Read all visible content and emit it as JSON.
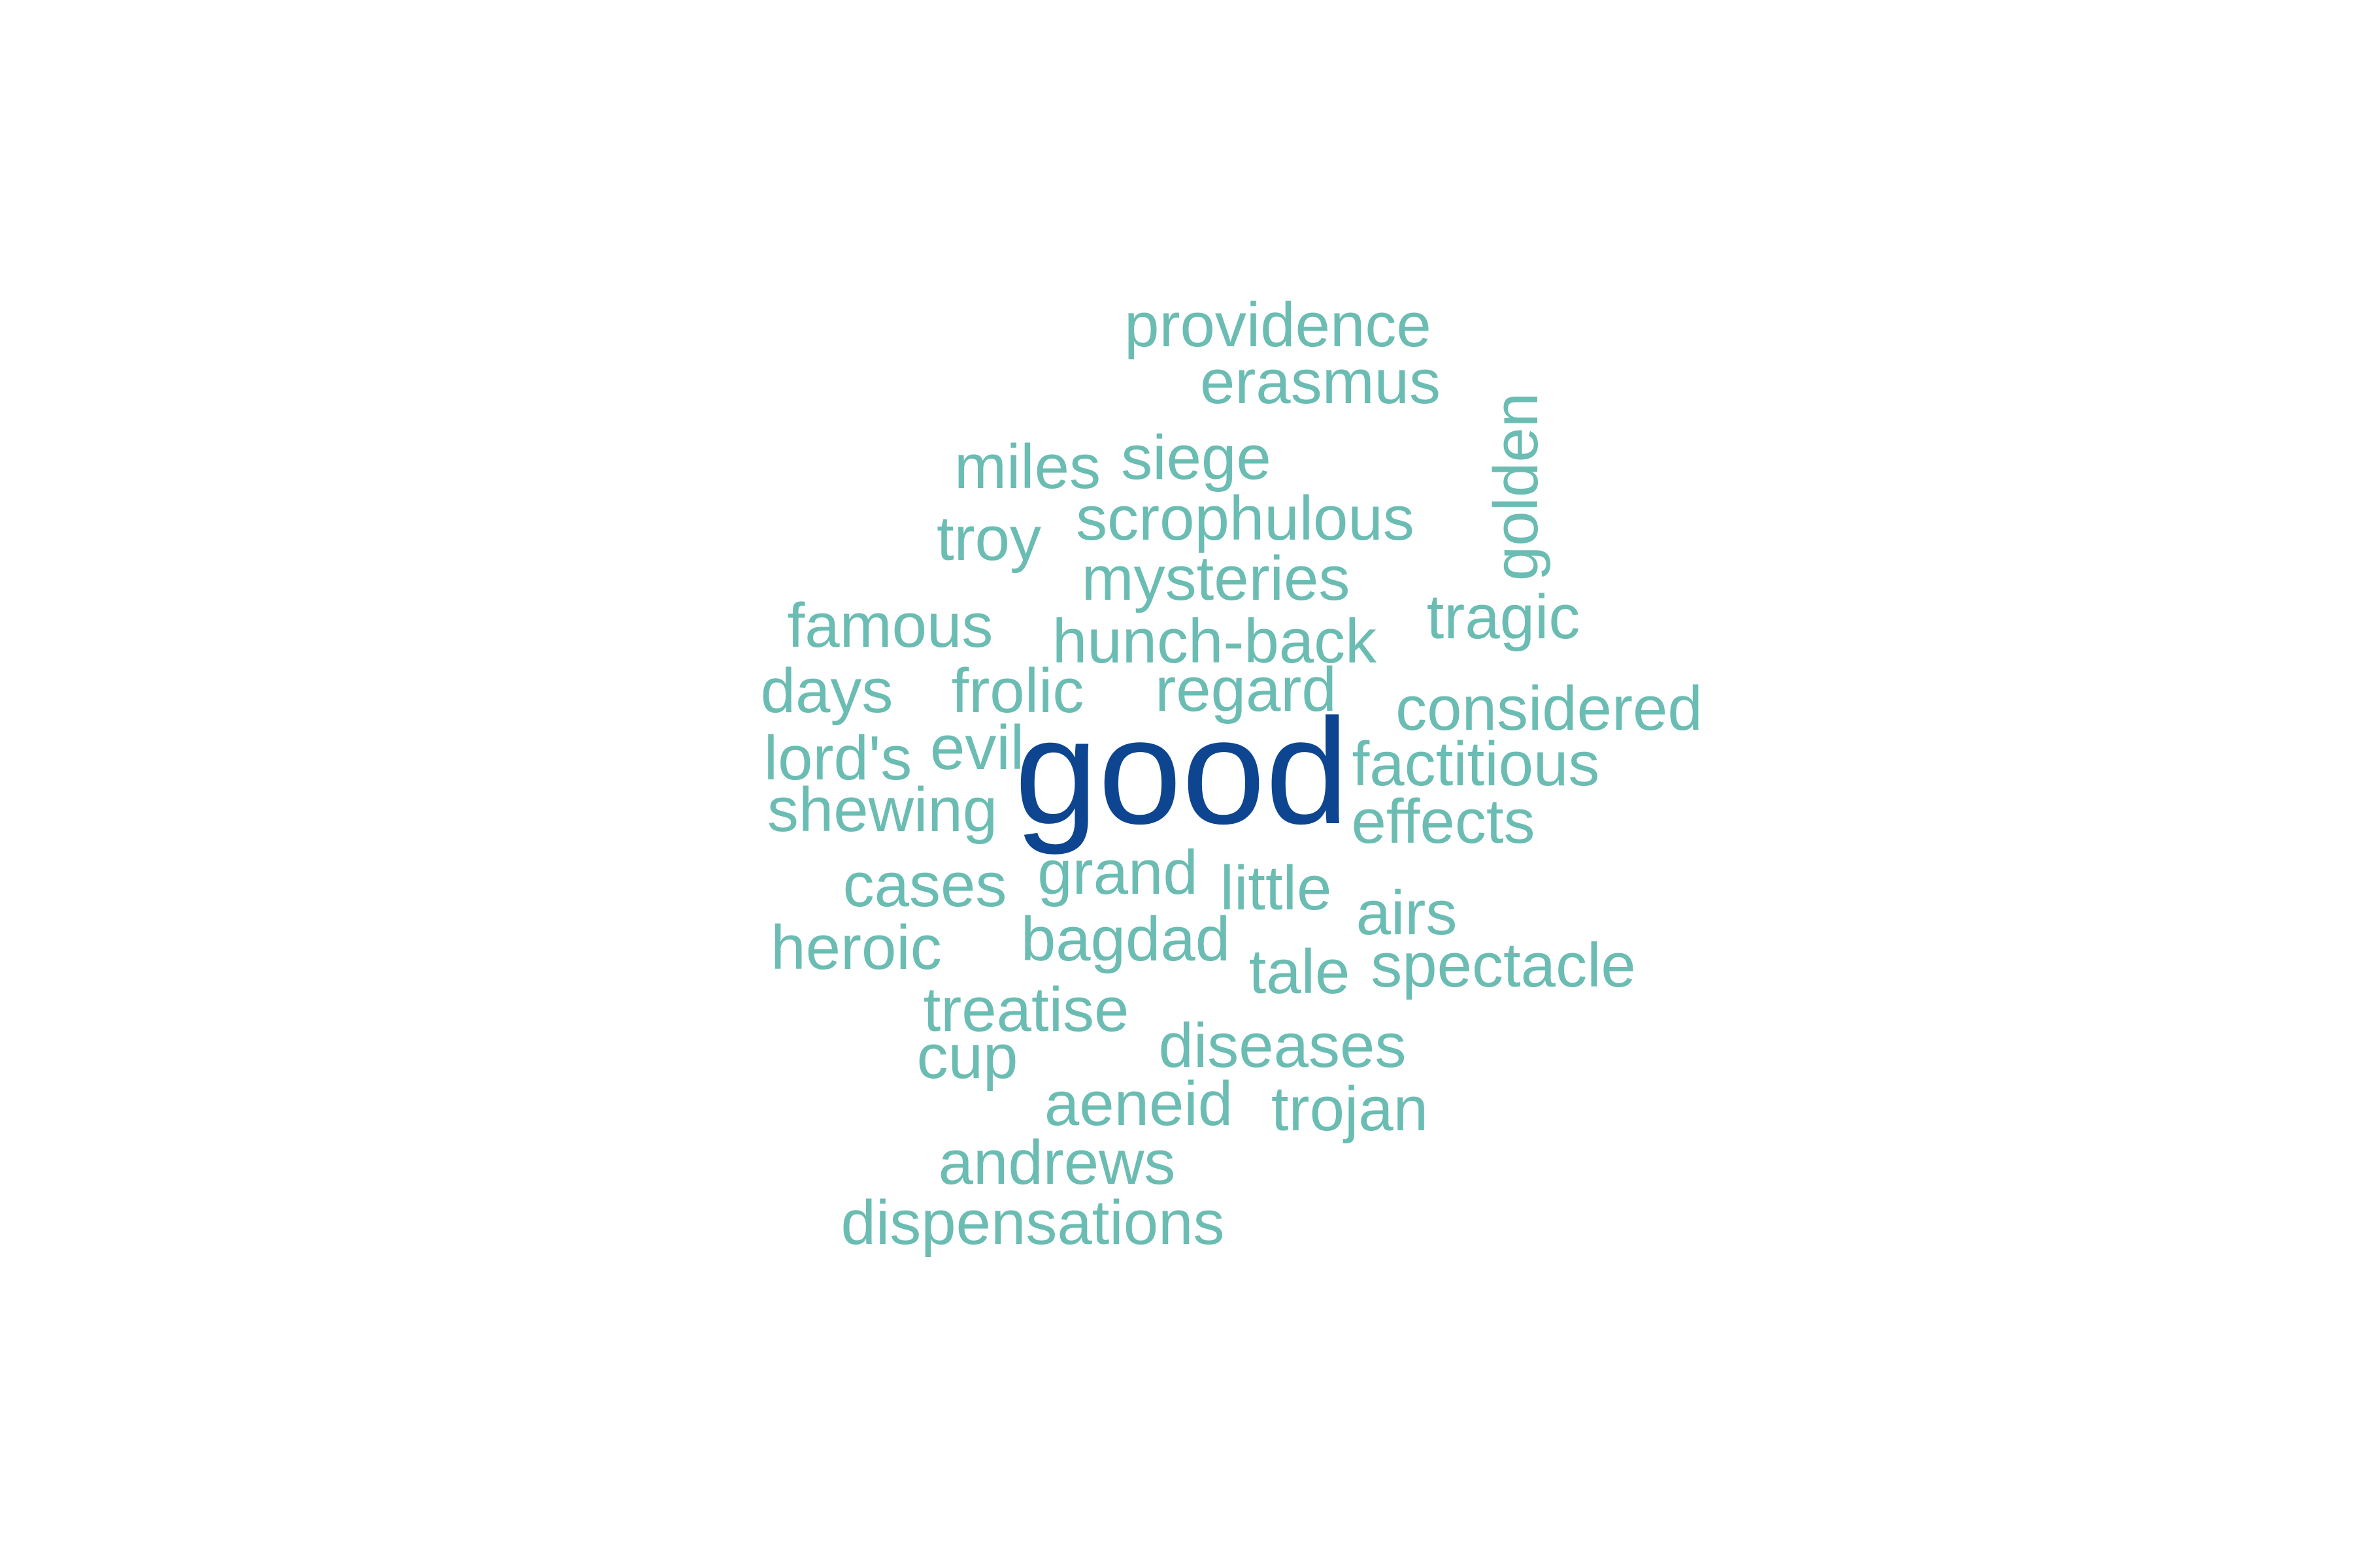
{
  "word_cloud": {
    "colors": {
      "primary": "#0d4591",
      "secondary": "#6bbcb2"
    },
    "words": [
      {
        "text": "providence",
        "weight": 1
      },
      {
        "text": "erasmus",
        "weight": 1
      },
      {
        "text": "golden",
        "weight": 1,
        "orientation": "vertical"
      },
      {
        "text": "miles",
        "weight": 1
      },
      {
        "text": "siege",
        "weight": 1
      },
      {
        "text": "scrophulous",
        "weight": 1
      },
      {
        "text": "troy",
        "weight": 1
      },
      {
        "text": "mysteries",
        "weight": 1
      },
      {
        "text": "tragic",
        "weight": 1
      },
      {
        "text": "famous",
        "weight": 1
      },
      {
        "text": "hunch-back",
        "weight": 1
      },
      {
        "text": "days",
        "weight": 1
      },
      {
        "text": "frolic",
        "weight": 1
      },
      {
        "text": "regard",
        "weight": 1
      },
      {
        "text": "considered",
        "weight": 1
      },
      {
        "text": "lord's",
        "weight": 1
      },
      {
        "text": "evil",
        "weight": 1
      },
      {
        "text": "good",
        "weight": 3
      },
      {
        "text": "factitious",
        "weight": 1
      },
      {
        "text": "shewing",
        "weight": 1
      },
      {
        "text": "effects",
        "weight": 1
      },
      {
        "text": "cases",
        "weight": 1
      },
      {
        "text": "grand",
        "weight": 1
      },
      {
        "text": "little",
        "weight": 1
      },
      {
        "text": "airs",
        "weight": 1
      },
      {
        "text": "heroic",
        "weight": 1
      },
      {
        "text": "bagdad",
        "weight": 1
      },
      {
        "text": "tale",
        "weight": 1
      },
      {
        "text": "spectacle",
        "weight": 1
      },
      {
        "text": "treatise",
        "weight": 1
      },
      {
        "text": "diseases",
        "weight": 1
      },
      {
        "text": "cup",
        "weight": 1
      },
      {
        "text": "aeneid",
        "weight": 1
      },
      {
        "text": "trojan",
        "weight": 1
      },
      {
        "text": "andrews",
        "weight": 1
      },
      {
        "text": "dispensations",
        "weight": 1
      }
    ]
  }
}
